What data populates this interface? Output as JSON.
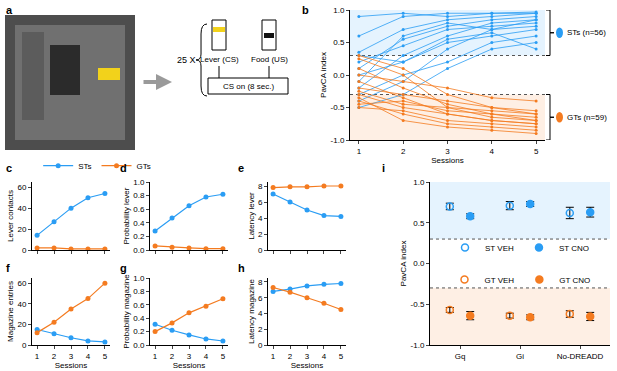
{
  "diagram": {
    "label": "a",
    "repeat": "25 X",
    "lever": "Lever (CS)",
    "food": "Food (US)",
    "cs": "CS on (8 sec.)"
  },
  "chart_data": [
    {
      "label": "b",
      "type": "line",
      "x": [
        1,
        2,
        3,
        4,
        5
      ],
      "xlabel": "Sessions",
      "ylabel": "PavCA index",
      "xlim": [
        0.8,
        5.2
      ],
      "xticks": [
        1,
        2,
        3,
        4,
        5
      ],
      "ylim": [
        -1,
        1
      ],
      "yticks": [
        {
          "value": -1,
          "label": "-1.0"
        },
        -0.5,
        {
          "value": 0,
          "label": "0.0"
        },
        0.5,
        {
          "value": 1,
          "label": "1.0"
        }
      ],
      "thresholds": [
        0.3,
        -0.3
      ],
      "legend": "right",
      "series": [
        {
          "name": "STs (n=56)",
          "color": "#2a9df4",
          "marker": "circle",
          "lines": [
            [
              0.1,
              0.55,
              0.75,
              0.85,
              0.9
            ],
            [
              -0.2,
              0.3,
              0.6,
              0.8,
              0.85
            ],
            [
              0.35,
              0.7,
              0.85,
              0.9,
              0.95
            ],
            [
              -0.4,
              -0.1,
              0.4,
              0.7,
              0.75
            ],
            [
              0.0,
              0.2,
              0.5,
              0.6,
              0.7
            ],
            [
              0.6,
              0.9,
              0.95,
              0.95,
              0.97
            ],
            [
              -0.3,
              0.0,
              0.2,
              0.5,
              0.6
            ],
            [
              0.2,
              0.45,
              0.7,
              0.75,
              0.8
            ],
            [
              -0.5,
              -0.3,
              0.1,
              0.4,
              0.5
            ],
            [
              0.9,
              0.95,
              0.9,
              0.95,
              0.95
            ],
            [
              -0.1,
              0.6,
              0.8,
              0.7,
              0.85
            ],
            [
              0.3,
              0.2,
              0.55,
              0.65,
              0.4
            ]
          ]
        },
        {
          "name": "GTs (n=59)",
          "color": "#f47b20",
          "marker": "circle",
          "lines": [
            [
              -0.3,
              -0.5,
              -0.6,
              -0.7,
              -0.75
            ],
            [
              0.3,
              0.1,
              -0.3,
              -0.5,
              -0.6
            ],
            [
              -0.4,
              -0.6,
              -0.75,
              -0.8,
              -0.85
            ],
            [
              0.1,
              -0.2,
              -0.45,
              -0.6,
              -0.65
            ],
            [
              -0.5,
              -0.55,
              -0.7,
              -0.75,
              -0.8
            ],
            [
              -0.2,
              -0.3,
              -0.4,
              -0.5,
              -0.55
            ],
            [
              0.0,
              -0.1,
              -0.2,
              -0.35,
              -0.4
            ],
            [
              -0.35,
              -0.7,
              -0.8,
              -0.85,
              -0.9
            ],
            [
              0.25,
              0.0,
              -0.5,
              -0.65,
              -0.7
            ],
            [
              -0.45,
              -0.4,
              -0.55,
              -0.6,
              -0.7
            ],
            [
              -0.1,
              -0.35,
              -0.6,
              -0.7,
              -0.75
            ],
            [
              -0.25,
              -0.45,
              -0.5,
              -0.55,
              -0.6
            ]
          ]
        }
      ]
    },
    {
      "label": "c",
      "type": "line",
      "x": [
        1,
        2,
        3,
        4,
        5
      ],
      "ylabel": "Lever contacts",
      "xlim": [
        0.7,
        5.3
      ],
      "xticks": [
        1,
        2,
        3,
        4,
        5
      ],
      "ylim": [
        0,
        65
      ],
      "yticks": [
        0,
        20,
        40,
        60
      ],
      "tick_labels": "y",
      "legend": "top",
      "series": [
        {
          "name": "STs",
          "color": "#2a9df4",
          "marker": "circle",
          "values": [
            14,
            27,
            40,
            50,
            54
          ]
        },
        {
          "name": "GTs",
          "color": "#f47b20",
          "marker": "circle",
          "values": [
            2,
            2,
            1,
            1,
            1
          ]
        }
      ]
    },
    {
      "label": "d",
      "type": "line",
      "x": [
        1,
        2,
        3,
        4,
        5
      ],
      "ylabel": "Probability lever",
      "xlim": [
        0.7,
        5.3
      ],
      "xticks": [
        1,
        2,
        3,
        4,
        5
      ],
      "ylim": [
        0,
        1
      ],
      "yticks": [
        {
          "value": 0,
          "label": "0.0"
        },
        0.2,
        0.4,
        0.6,
        0.8,
        {
          "value": 1,
          "label": "1.0"
        }
      ],
      "tick_labels": "y",
      "series": [
        {
          "name": "STs",
          "color": "#2a9df4",
          "marker": "circle",
          "values": [
            0.28,
            0.47,
            0.65,
            0.78,
            0.82
          ]
        },
        {
          "name": "GTs",
          "color": "#f47b20",
          "marker": "circle",
          "values": [
            0.06,
            0.04,
            0.03,
            0.02,
            0.02
          ]
        }
      ]
    },
    {
      "label": "e",
      "type": "line",
      "x": [
        1,
        2,
        3,
        4,
        5
      ],
      "ylabel": "Latency lever",
      "xlim": [
        0.7,
        5.3
      ],
      "xticks": [
        1,
        2,
        3,
        4,
        5
      ],
      "ylim": [
        0,
        8.5
      ],
      "yticks": [
        0,
        2,
        4,
        6,
        8
      ],
      "tick_labels": "y",
      "series": [
        {
          "name": "STs",
          "color": "#2a9df4",
          "marker": "circle",
          "values": [
            7.0,
            6.0,
            5.0,
            4.3,
            4.2
          ]
        },
        {
          "name": "GTs",
          "color": "#f47b20",
          "marker": "circle",
          "values": [
            7.8,
            7.9,
            7.9,
            8.0,
            8.0
          ]
        }
      ]
    },
    {
      "label": "f",
      "type": "line",
      "x": [
        1,
        2,
        3,
        4,
        5
      ],
      "xlabel": "Sessions",
      "ylabel": "Magazine entries",
      "xlim": [
        0.7,
        5.3
      ],
      "xticks": [
        1,
        2,
        3,
        4,
        5
      ],
      "ylim": [
        0,
        65
      ],
      "yticks": [
        0,
        20,
        40,
        60
      ],
      "series": [
        {
          "name": "STs",
          "color": "#2a9df4",
          "marker": "circle",
          "values": [
            15,
            11,
            7,
            4,
            3
          ]
        },
        {
          "name": "GTs",
          "color": "#f47b20",
          "marker": "circle",
          "values": [
            12,
            22,
            35,
            45,
            60
          ]
        }
      ]
    },
    {
      "label": "g",
      "type": "line",
      "x": [
        1,
        2,
        3,
        4,
        5
      ],
      "xlabel": "Sessions",
      "ylabel": "Probability magazine",
      "xlim": [
        0.7,
        5.3
      ],
      "xticks": [
        1,
        2,
        3,
        4,
        5
      ],
      "ylim": [
        0,
        1
      ],
      "yticks": [
        {
          "value": 0,
          "label": "0.0"
        },
        0.2,
        0.4,
        0.6,
        0.8,
        {
          "value": 1,
          "label": "1.0"
        }
      ],
      "series": [
        {
          "name": "STs",
          "color": "#2a9df4",
          "marker": "circle",
          "values": [
            0.31,
            0.22,
            0.15,
            0.09,
            0.06
          ]
        },
        {
          "name": "GTs",
          "color": "#f47b20",
          "marker": "circle",
          "values": [
            0.2,
            0.33,
            0.48,
            0.58,
            0.69
          ]
        }
      ]
    },
    {
      "label": "h",
      "type": "line",
      "x": [
        1,
        2,
        3,
        4,
        5
      ],
      "xlabel": "Sessions",
      "ylabel": "Latency magazine",
      "xlim": [
        0.7,
        5.3
      ],
      "xticks": [
        1,
        2,
        3,
        4,
        5
      ],
      "ylim": [
        0,
        8.5
      ],
      "yticks": [
        0,
        2,
        4,
        6,
        8
      ],
      "series": [
        {
          "name": "STs",
          "color": "#2a9df4",
          "marker": "circle",
          "values": [
            6.8,
            7.1,
            7.5,
            7.7,
            7.8
          ]
        },
        {
          "name": "GTs",
          "color": "#f47b20",
          "marker": "circle",
          "values": [
            7.3,
            6.7,
            6.0,
            5.3,
            4.5
          ]
        }
      ]
    },
    {
      "label": "i",
      "type": "scatter",
      "categories": [
        "Gq",
        "Gi",
        "No-DREADD"
      ],
      "ylabel": "PavCA index",
      "ylim": [
        -1,
        1
      ],
      "yticks": [
        {
          "value": -1,
          "label": "-1.0"
        },
        -0.5,
        {
          "value": 0,
          "label": "0.0"
        },
        0.5,
        {
          "value": 1,
          "label": "1.0"
        }
      ],
      "thresholds": [
        0.3,
        -0.3
      ],
      "legend": "center",
      "series": [
        {
          "name": "ST VEH",
          "color": "#2a9df4",
          "marker": "circle-open",
          "values": [
            0.7,
            0.71,
            0.62
          ],
          "error": [
            0.04,
            0.05,
            0.07
          ]
        },
        {
          "name": "ST CNO",
          "color": "#2a9df4",
          "marker": "circle",
          "values": [
            0.58,
            0.73,
            0.63
          ],
          "error": [
            0.03,
            0.03,
            0.06
          ]
        },
        {
          "name": "GT VEH",
          "color": "#f47b20",
          "marker": "circle-open",
          "values": [
            -0.57,
            -0.64,
            -0.62
          ],
          "error": [
            0.03,
            0.03,
            0.04
          ]
        },
        {
          "name": "GT CNO",
          "color": "#f47b20",
          "marker": "circle",
          "values": [
            -0.64,
            -0.66,
            -0.65
          ],
          "error": [
            0.05,
            0.03,
            0.05
          ]
        }
      ]
    }
  ]
}
